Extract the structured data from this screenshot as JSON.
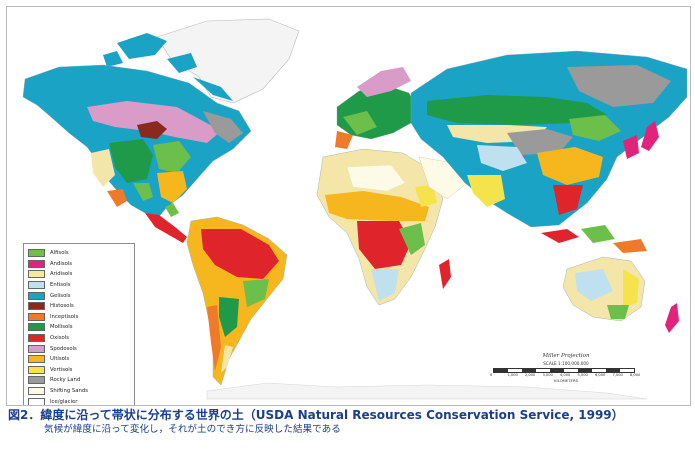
{
  "map": {
    "legend": [
      {
        "label": "Alfisols",
        "color": "#6cbf4a"
      },
      {
        "label": "Andisols",
        "color": "#e2237c"
      },
      {
        "label": "Aridisols",
        "color": "#f4e6a8"
      },
      {
        "label": "Entisols",
        "color": "#bfe1ef"
      },
      {
        "label": "Gelisols",
        "color": "#1aa3c4"
      },
      {
        "label": "Histosols",
        "color": "#8a2a1e"
      },
      {
        "label": "Inceptisols",
        "color": "#ef7b2a"
      },
      {
        "label": "Mollisols",
        "color": "#1f9a48"
      },
      {
        "label": "Oxisols",
        "color": "#e0242c"
      },
      {
        "label": "Spodosols",
        "color": "#d99bc8"
      },
      {
        "label": "Ultisols",
        "color": "#f5b71d"
      },
      {
        "label": "Vertisols",
        "color": "#f4e34a"
      },
      {
        "label": "Rocky Land",
        "color": "#9a9a9a"
      },
      {
        "label": "Shifting Sands",
        "color": "#fdfbe8"
      },
      {
        "label": "Ice/glacier",
        "color": "#ffffff"
      }
    ],
    "scale": {
      "projection": "Miller Projection",
      "ratio": "SCALE 1:100,000,000",
      "ticks": [
        "0",
        "1,000",
        "2,000",
        "3,000",
        "4,000",
        "5,000",
        "6,000",
        "7,000",
        "8,000"
      ],
      "units": "KILOMETERS"
    }
  },
  "caption": {
    "title": "図2．緯度に沿って帯状に分布する世界の土（USDA Natural Resources Conservation Service, 1999）",
    "subtitle": "気候が緯度に沿って変化し，それが土のでき方に反映した結果である"
  }
}
